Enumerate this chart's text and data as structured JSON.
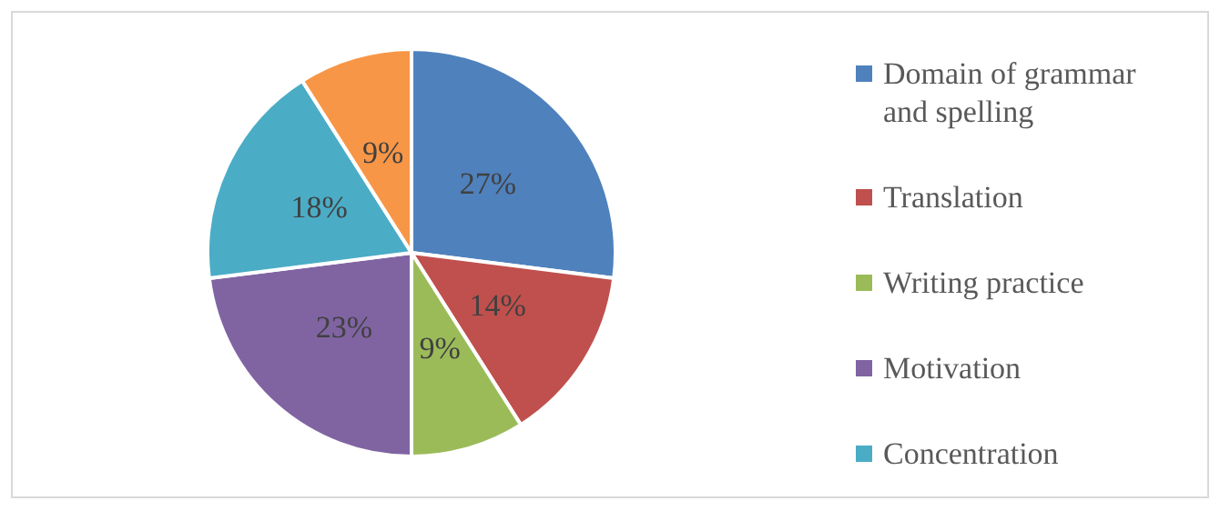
{
  "chart_data": {
    "type": "pie",
    "categories": [
      "Domain of grammar and spelling",
      "Translation",
      "Writing practice",
      "Motivation",
      "Concentration",
      null
    ],
    "values": [
      27,
      14,
      9,
      23,
      18,
      9
    ],
    "colors": [
      "#4f81bd",
      "#c0504d",
      "#9bbb59",
      "#8064a2",
      "#4bacc6",
      "#f79646"
    ],
    "value_labels": [
      "27%",
      "14%",
      "9%",
      "23%",
      "18%",
      "9%"
    ],
    "legend": "right"
  }
}
